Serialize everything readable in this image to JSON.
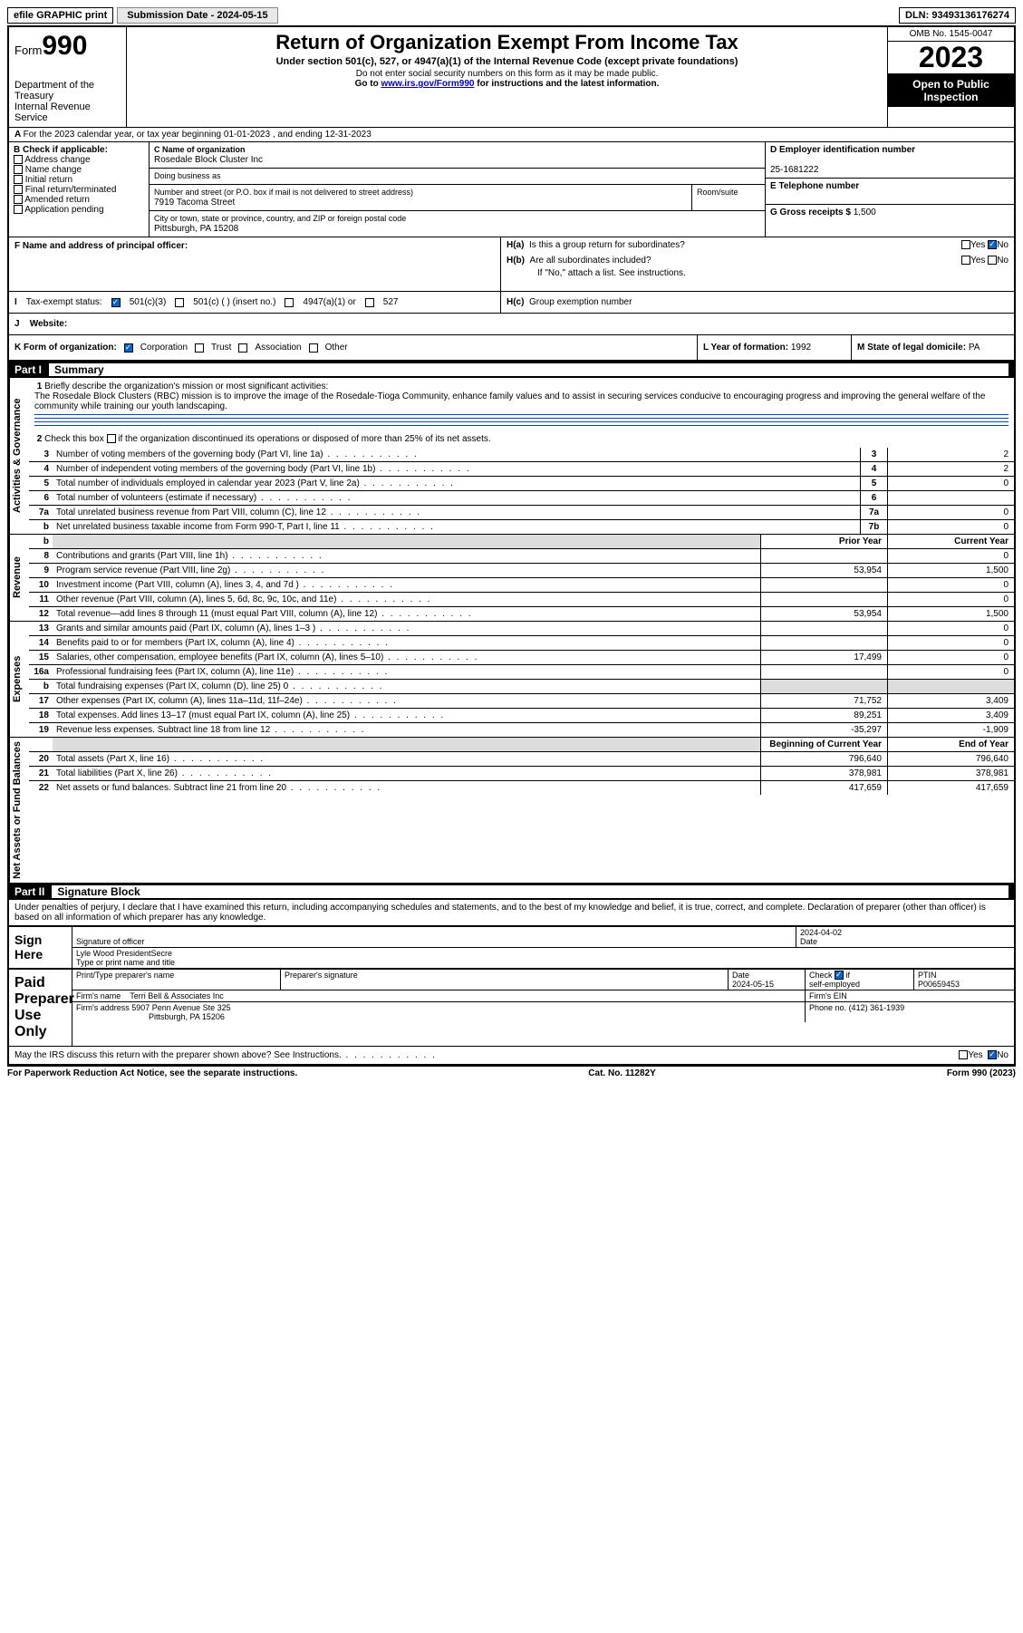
{
  "topbar": {
    "efile": "efile GRAPHIC print",
    "subdate_label": "Submission Date - ",
    "subdate": "2024-05-15",
    "dln_label": "DLN: ",
    "dln": "93493136176274"
  },
  "header": {
    "form_small": "Form",
    "form_num": "990",
    "dept": "Department of the Treasury",
    "irs": "Internal Revenue Service",
    "title": "Return of Organization Exempt From Income Tax",
    "sub1": "Under section 501(c), 527, or 4947(a)(1) of the Internal Revenue Code (except private foundations)",
    "sub2": "Do not enter social security numbers on this form as it may be made public.",
    "sub3_a": "Go to ",
    "sub3_link": "www.irs.gov/Form990",
    "sub3_b": " for instructions and the latest information.",
    "omb": "OMB No. 1545-0047",
    "year": "2023",
    "inspect": "Open to Public Inspection"
  },
  "line_a": "For the 2023 calendar year, or tax year beginning 01-01-2023   , and ending 12-31-2023",
  "b": {
    "label": "B Check if applicable:",
    "opts": [
      "Address change",
      "Name change",
      "Initial return",
      "Final return/terminated",
      "Amended return",
      "Application pending"
    ]
  },
  "c": {
    "name_label": "C Name of organization",
    "name": "Rosedale Block Cluster Inc",
    "dba": "Doing business as",
    "street_label": "Number and street (or P.O. box if mail is not delivered to street address)",
    "room_label": "Room/suite",
    "street": "7919 Tacoma Street",
    "city_label": "City or town, state or province, country, and ZIP or foreign postal code",
    "city": "Pittsburgh, PA  15208"
  },
  "d": {
    "label": "D Employer identification number",
    "value": "25-1681222"
  },
  "e": {
    "label": "E Telephone number"
  },
  "g": {
    "label": "G Gross receipts $",
    "value": "1,500"
  },
  "f": {
    "label": "F  Name and address of principal officer:"
  },
  "h": {
    "a": "H(a)  Is this a group return for subordinates?",
    "b": "H(b)  Are all subordinates included?",
    "b_note": "If \"No,\" attach a list. See instructions.",
    "c": "H(c)  Group exemption number",
    "yes": "Yes",
    "no": "No"
  },
  "i": {
    "label": "Tax-exempt status:",
    "o1": "501(c)(3)",
    "o2": "501(c) (  ) (insert no.)",
    "o3": "4947(a)(1) or",
    "o4": "527"
  },
  "j": {
    "label": "Website:"
  },
  "k": {
    "label": "K Form of organization:",
    "o1": "Corporation",
    "o2": "Trust",
    "o3": "Association",
    "o4": "Other"
  },
  "l": {
    "label": "L Year of formation: ",
    "value": "1992"
  },
  "m": {
    "label": "M State of legal domicile: ",
    "value": "PA"
  },
  "part1": {
    "name": "Part I",
    "title": "Summary"
  },
  "part2": {
    "name": "Part II",
    "title": "Signature Block"
  },
  "vlabels": {
    "gov": "Activities & Governance",
    "rev": "Revenue",
    "exp": "Expenses",
    "net": "Net Assets or Fund Balances"
  },
  "summary": {
    "q1": "Briefly describe the organization's mission or most significant activities:",
    "mission": "The Rosedale Block Clusters (RBC) mission is to improve the image of the Rosedale-Tioga Community, enhance family values and to assist in securing services conducive to encouraging progress and improving the general welfare of the community while training our youth landscaping.",
    "q2": "Check this box       if the organization discontinued its operations or disposed of more than 25% of its net assets.",
    "rows_gov": [
      {
        "n": "3",
        "t": "Number of voting members of the governing body (Part VI, line 1a)",
        "box": "3",
        "v": "2"
      },
      {
        "n": "4",
        "t": "Number of independent voting members of the governing body (Part VI, line 1b)",
        "box": "4",
        "v": "2"
      },
      {
        "n": "5",
        "t": "Total number of individuals employed in calendar year 2023 (Part V, line 2a)",
        "box": "5",
        "v": "0"
      },
      {
        "n": "6",
        "t": "Total number of volunteers (estimate if necessary)",
        "box": "6",
        "v": ""
      },
      {
        "n": "7a",
        "t": "Total unrelated business revenue from Part VIII, column (C), line 12",
        "box": "7a",
        "v": "0"
      },
      {
        "n": "b",
        "t": "Net unrelated business taxable income from Form 990-T, Part I, line 11",
        "box": "7b",
        "v": "0"
      }
    ],
    "col_prior": "Prior Year",
    "col_curr": "Current Year",
    "col_beg": "Beginning of Current Year",
    "col_end": "End of Year",
    "rows_rev": [
      {
        "n": "8",
        "t": "Contributions and grants (Part VIII, line 1h)",
        "p": "",
        "c": "0"
      },
      {
        "n": "9",
        "t": "Program service revenue (Part VIII, line 2g)",
        "p": "53,954",
        "c": "1,500"
      },
      {
        "n": "10",
        "t": "Investment income (Part VIII, column (A), lines 3, 4, and 7d )",
        "p": "",
        "c": "0"
      },
      {
        "n": "11",
        "t": "Other revenue (Part VIII, column (A), lines 5, 6d, 8c, 9c, 10c, and 11e)",
        "p": "",
        "c": "0"
      },
      {
        "n": "12",
        "t": "Total revenue—add lines 8 through 11 (must equal Part VIII, column (A), line 12)",
        "p": "53,954",
        "c": "1,500"
      }
    ],
    "rows_exp": [
      {
        "n": "13",
        "t": "Grants and similar amounts paid (Part IX, column (A), lines 1–3 )",
        "p": "",
        "c": "0"
      },
      {
        "n": "14",
        "t": "Benefits paid to or for members (Part IX, column (A), line 4)",
        "p": "",
        "c": "0"
      },
      {
        "n": "15",
        "t": "Salaries, other compensation, employee benefits (Part IX, column (A), lines 5–10)",
        "p": "17,499",
        "c": "0"
      },
      {
        "n": "16a",
        "t": "Professional fundraising fees (Part IX, column (A), line 11e)",
        "p": "",
        "c": "0"
      },
      {
        "n": "b",
        "t": "Total fundraising expenses (Part IX, column (D), line 25) 0",
        "p": "",
        "c": "",
        "gray": true
      },
      {
        "n": "17",
        "t": "Other expenses (Part IX, column (A), lines 11a–11d, 11f–24e)",
        "p": "71,752",
        "c": "3,409"
      },
      {
        "n": "18",
        "t": "Total expenses. Add lines 13–17 (must equal Part IX, column (A), line 25)",
        "p": "89,251",
        "c": "3,409"
      },
      {
        "n": "19",
        "t": "Revenue less expenses. Subtract line 18 from line 12",
        "p": "-35,297",
        "c": "-1,909"
      }
    ],
    "rows_net": [
      {
        "n": "20",
        "t": "Total assets (Part X, line 16)",
        "p": "796,640",
        "c": "796,640"
      },
      {
        "n": "21",
        "t": "Total liabilities (Part X, line 26)",
        "p": "378,981",
        "c": "378,981"
      },
      {
        "n": "22",
        "t": "Net assets or fund balances. Subtract line 21 from line 20",
        "p": "417,659",
        "c": "417,659"
      }
    ]
  },
  "sig": {
    "perjury": "Under penalties of perjury, I declare that I have examined this return, including accompanying schedules and statements, and to the best of my knowledge and belief, it is true, correct, and complete. Declaration of preparer (other than officer) is based on all information of which preparer has any knowledge.",
    "sign_here": "Sign Here",
    "sig_officer": "Signature of officer",
    "date": "Date",
    "sig_date": "2024-04-02",
    "officer_name": "Lyle Wood  PresidentSecre",
    "type_name": "Type or print name and title",
    "paid": "Paid Preparer Use Only",
    "prep_name_label": "Print/Type preparer's name",
    "prep_sig_label": "Preparer's signature",
    "prep_date": "2024-05-15",
    "check_if": "Check        if self-employed",
    "ptin_label": "PTIN",
    "ptin": "P00659453",
    "firm_name_label": "Firm's name",
    "firm_name": "Terri Bell & Associates Inc",
    "firm_ein_label": "Firm's EIN",
    "firm_addr_label": "Firm's address",
    "firm_addr1": "5907 Penn Avenue Ste 325",
    "firm_addr2": "Pittsburgh, PA  15206",
    "phone_label": "Phone no.",
    "phone": "(412) 361-1939",
    "discuss": "May the IRS discuss this return with the preparer shown above? See Instructions."
  },
  "footer": {
    "pra": "For Paperwork Reduction Act Notice, see the separate instructions.",
    "cat": "Cat. No. 11282Y",
    "form": "Form 990 (2023)"
  }
}
